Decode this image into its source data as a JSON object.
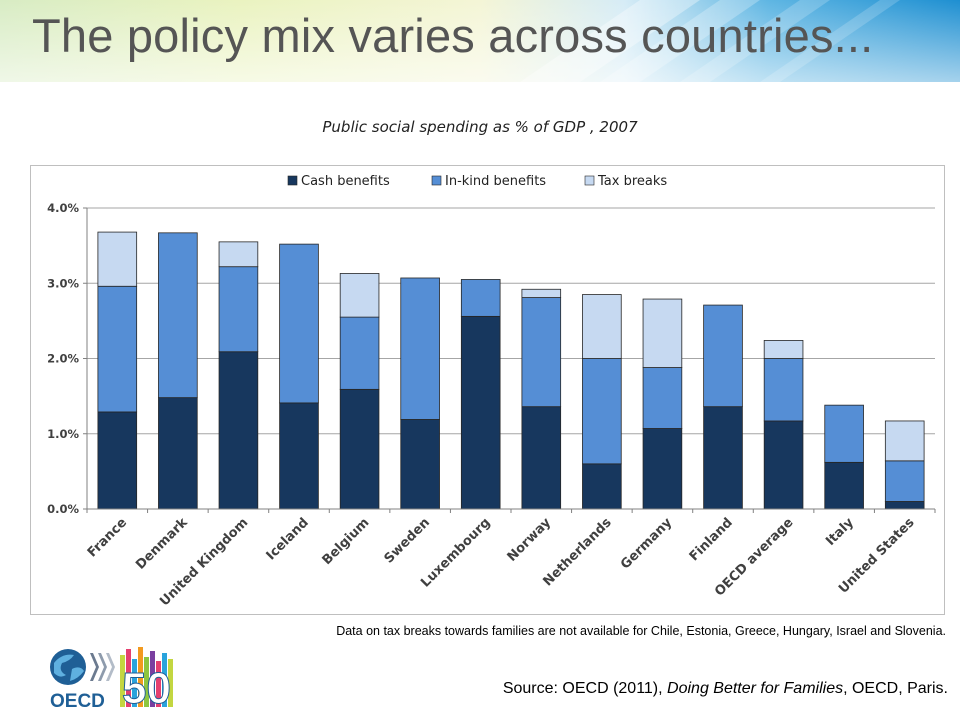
{
  "slide": {
    "title": "The policy mix varies across countries...",
    "note": "Data on tax breaks towards families are not available for Chile, Estonia, Greece, Hungary, Israel and Slovenia.",
    "source": {
      "prefix": "Source: OECD (2011), ",
      "publication": "Doing Better for Families",
      "suffix": ", OECD, Paris."
    },
    "logo": {
      "org_text": "OECD",
      "anniversary_text": "50"
    }
  },
  "colors": {
    "cash": "#17375e",
    "inkind": "#558ed5",
    "tax": "#c6d9f1",
    "accent_green": "#c3d640",
    "accent_blue": "#29a3dc"
  },
  "chart_data": {
    "type": "bar",
    "stacked": true,
    "title": "Public social spending as % of GDP , 2007",
    "xlabel": "",
    "ylabel": "",
    "ylim": [
      0,
      4
    ],
    "yticks": [
      "0.0%",
      "1.0%",
      "2.0%",
      "3.0%",
      "4.0%"
    ],
    "grid": true,
    "legend_position": "top",
    "categories": [
      "France",
      "Denmark",
      "United Kingdom",
      "Iceland",
      "Belgium",
      "Sweden",
      "Luxembourg",
      "Norway",
      "Netherlands",
      "Germany",
      "Finland",
      "OECD average",
      "Italy",
      "United States"
    ],
    "series": [
      {
        "name": "Cash benefits",
        "color": "#17375e",
        "values": [
          1.29,
          1.48,
          2.09,
          1.41,
          1.59,
          1.19,
          2.56,
          1.36,
          0.6,
          1.07,
          1.36,
          1.17,
          0.62,
          0.1
        ]
      },
      {
        "name": "In-kind benefits",
        "color": "#558ed5",
        "values": [
          1.67,
          2.19,
          1.13,
          2.11,
          0.96,
          1.88,
          0.49,
          1.45,
          1.4,
          0.81,
          1.35,
          0.83,
          0.76,
          0.54
        ]
      },
      {
        "name": "Tax breaks",
        "color": "#c6d9f1",
        "values": [
          0.72,
          0.0,
          0.33,
          0.0,
          0.58,
          0.0,
          0.0,
          0.11,
          0.85,
          0.91,
          0.0,
          0.24,
          0.0,
          0.53
        ]
      }
    ]
  }
}
